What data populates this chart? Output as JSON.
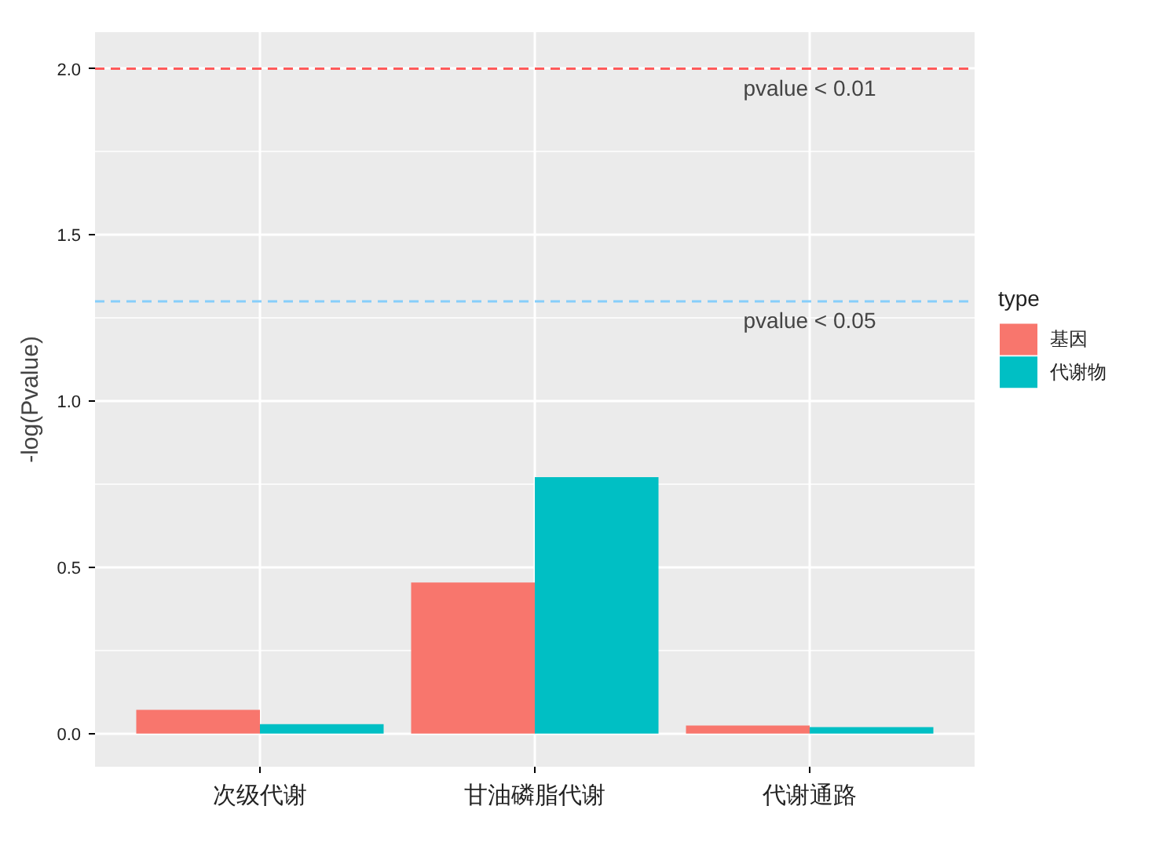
{
  "chart_data": {
    "type": "bar",
    "ylabel": "-log(Pvalue)",
    "legend_title": "type",
    "categories": [
      "次级代谢",
      "甘油磷脂代谢",
      "代谢通路"
    ],
    "series": [
      {
        "name": "基因",
        "color": "#f8766d",
        "values": [
          0.071,
          0.454,
          0.024
        ]
      },
      {
        "name": "代谢物",
        "color": "#00bfc4",
        "values": [
          0.028,
          0.771,
          0.019
        ]
      }
    ],
    "ylim": [
      -0.1,
      2.11
    ],
    "yticks": [
      {
        "value": 0,
        "label": "0.0"
      },
      {
        "value": 0.5,
        "label": "0.5"
      },
      {
        "value": 1,
        "label": "1.0"
      },
      {
        "value": 1.5,
        "label": "1.5"
      },
      {
        "value": 2,
        "label": "2.0"
      }
    ],
    "ref_lines": [
      {
        "axis": "y",
        "value": 2,
        "label": "pvalue < 0.01",
        "color": "#ff5a5a",
        "line_style": "dashed"
      },
      {
        "axis": "y",
        "value": 1.3,
        "label": "pvalue < 0.05",
        "color": "#87cefa",
        "line_style": "dashed"
      }
    ],
    "grid": true,
    "legend": "right"
  }
}
